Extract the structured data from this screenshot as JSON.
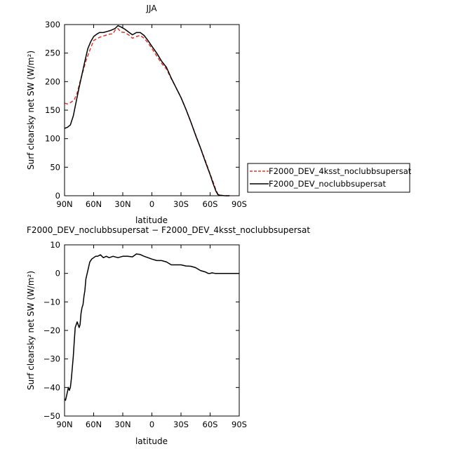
{
  "chart_data": [
    {
      "type": "line",
      "title": "JJA",
      "xlabel": "latitude",
      "ylabel": "Surf clearsky net SW (W/m²)",
      "xlim": [
        90,
        -90
      ],
      "ylim": [
        0,
        300
      ],
      "x_ticks": [
        {
          "value": 90,
          "label": "90N"
        },
        {
          "value": 60,
          "label": "60N"
        },
        {
          "value": 30,
          "label": "30N"
        },
        {
          "value": 0,
          "label": "0"
        },
        {
          "value": -30,
          "label": "30S"
        },
        {
          "value": -60,
          "label": "60S"
        },
        {
          "value": -90,
          "label": "90S"
        }
      ],
      "y_ticks": [
        0,
        50,
        100,
        150,
        200,
        250,
        300
      ],
      "legend_placement": "right",
      "series": [
        {
          "name": "F2000_DEV_4ksst_noclubbsupersat",
          "color": "#e8332a",
          "dash": "dashed",
          "x": [
            90,
            87,
            84,
            80,
            77,
            74,
            71,
            68,
            64,
            60,
            56,
            52,
            48,
            44,
            40,
            38,
            35,
            32,
            28,
            24,
            20,
            16,
            12,
            8,
            4,
            0,
            -5,
            -10,
            -15,
            -20,
            -25,
            -30,
            -35,
            -40,
            -45,
            -50,
            -55,
            -60,
            -63,
            -66,
            -68,
            -70,
            -75,
            -80
          ],
          "y": [
            162,
            161,
            163,
            168,
            180,
            200,
            218,
            236,
            255,
            272,
            276,
            279,
            281,
            283,
            284,
            290,
            293,
            287,
            286,
            282,
            276,
            279,
            281,
            276,
            268,
            258,
            245,
            232,
            222,
            205,
            189,
            172,
            152,
            130,
            107,
            84,
            62,
            38,
            25,
            10,
            3,
            1,
            0,
            0
          ]
        },
        {
          "name": "F2000_DEV_noclubbsupersat",
          "color": "#000000",
          "dash": "solid",
          "x": [
            90,
            87,
            84,
            81,
            78,
            75,
            72,
            69,
            66,
            63,
            60,
            57,
            54,
            50,
            46,
            42,
            38,
            35,
            32,
            28,
            24,
            20,
            16,
            12,
            8,
            4,
            0,
            -5,
            -10,
            -15,
            -20,
            -25,
            -30,
            -35,
            -40,
            -45,
            -50,
            -55,
            -60,
            -63,
            -66,
            -68,
            -70,
            -75,
            -80
          ],
          "y": [
            118,
            120,
            124,
            140,
            165,
            190,
            213,
            236,
            258,
            270,
            279,
            283,
            286,
            286,
            288,
            290,
            293,
            298,
            296,
            292,
            287,
            282,
            286,
            286,
            281,
            272,
            262,
            250,
            236,
            225,
            206,
            189,
            172,
            152,
            130,
            106,
            84,
            60,
            37,
            22,
            8,
            2,
            1,
            0,
            0
          ]
        }
      ]
    },
    {
      "type": "line",
      "title": "F2000_DEV_noclubbsupersat − F2000_DEV_4ksst_noclubbsupersat",
      "xlabel": "latitude",
      "ylabel": "Surf clearsky net SW (W/m²)",
      "xlim": [
        90,
        -90
      ],
      "ylim": [
        -50,
        10
      ],
      "x_ticks": [
        {
          "value": 90,
          "label": "90N"
        },
        {
          "value": 60,
          "label": "60N"
        },
        {
          "value": 30,
          "label": "30N"
        },
        {
          "value": 0,
          "label": "0"
        },
        {
          "value": -30,
          "label": "30S"
        },
        {
          "value": -60,
          "label": "60S"
        },
        {
          "value": -90,
          "label": "90S"
        }
      ],
      "y_ticks": [
        -50,
        -40,
        -30,
        -20,
        -10,
        0,
        10
      ],
      "series": [
        {
          "color": "#000000",
          "dash": "solid",
          "x": [
            90,
            89,
            88,
            86,
            85,
            84,
            83,
            82,
            81,
            80,
            79,
            78,
            77,
            76,
            75,
            74,
            73,
            72,
            71,
            70,
            69,
            68,
            66,
            64,
            62,
            60,
            58,
            56,
            53,
            50,
            47,
            44,
            40,
            35,
            30,
            25,
            20,
            16,
            12,
            8,
            4,
            0,
            -5,
            -10,
            -15,
            -20,
            -25,
            -30,
            -35,
            -40,
            -45,
            -50,
            -55,
            -58,
            -60,
            -62,
            -65,
            -70,
            -75,
            -80,
            -85,
            -90
          ],
          "y": [
            -44,
            -44.5,
            -43,
            -40,
            -41,
            -40,
            -37,
            -33,
            -29,
            -24,
            -19,
            -18,
            -17,
            -18,
            -19,
            -18,
            -14,
            -12,
            -11,
            -8,
            -6,
            -2,
            1,
            4,
            5,
            5.5,
            6,
            6,
            6.5,
            5.5,
            6,
            5.5,
            6,
            5.5,
            6,
            6,
            5.8,
            6.8,
            6.6,
            6,
            5.5,
            5,
            4.5,
            4.5,
            4,
            3,
            3,
            3,
            2.6,
            2.5,
            2,
            1,
            0.5,
            0,
            0,
            0.2,
            0,
            0,
            0,
            0,
            0,
            0
          ]
        }
      ]
    }
  ]
}
